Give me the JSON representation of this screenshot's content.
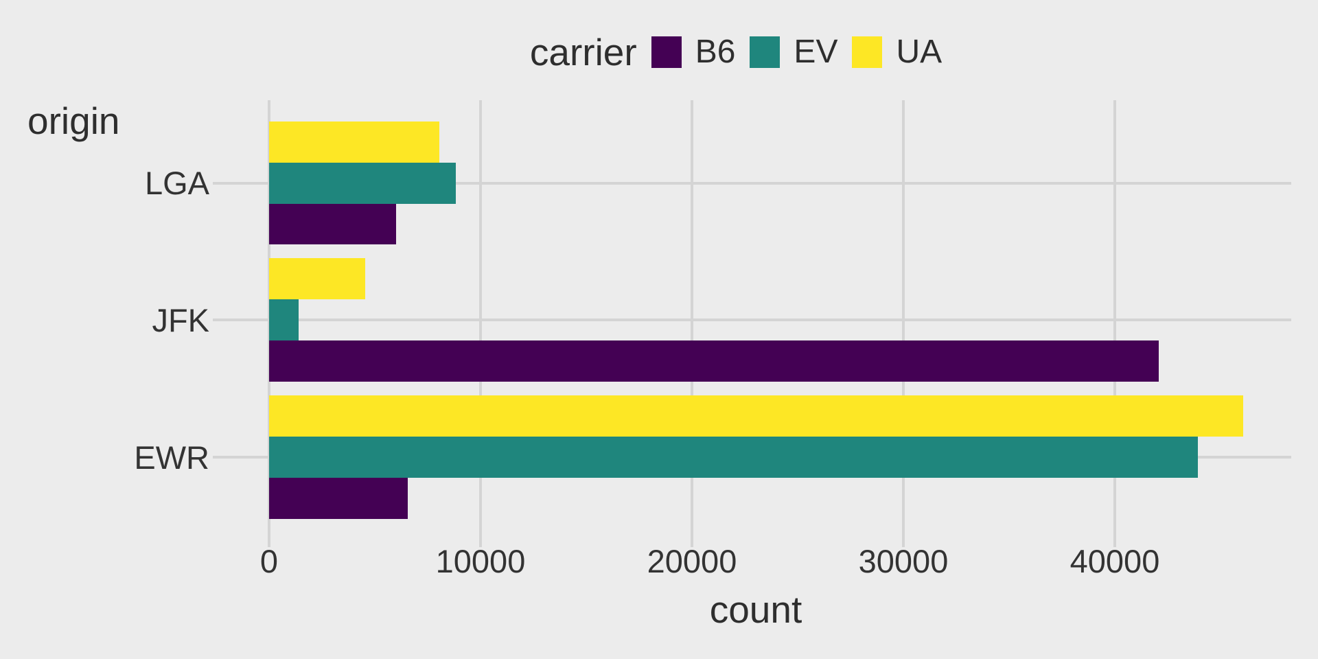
{
  "legend": {
    "title": "carrier"
  },
  "chart_data": {
    "type": "bar",
    "orientation": "horizontal",
    "title": "",
    "xlabel": "count",
    "ylabel": "origin",
    "legend_title": "carrier",
    "legend_position": "top",
    "grid": "major-only",
    "categories": [
      "LGA",
      "JFK",
      "EWR"
    ],
    "series": [
      {
        "name": "B6",
        "color": "#440154",
        "values": {
          "LGA": 6002,
          "JFK": 42076,
          "EWR": 6557
        }
      },
      {
        "name": "EV",
        "color": "#1f867d",
        "values": {
          "LGA": 8826,
          "JFK": 1408,
          "EWR": 43939
        }
      },
      {
        "name": "UA",
        "color": "#fde725",
        "values": {
          "LGA": 8044,
          "JFK": 4534,
          "EWR": 46087
        }
      }
    ],
    "x_ticks": [
      0,
      10000,
      20000,
      30000,
      40000
    ],
    "x_tick_labels": [
      "0",
      "10000",
      "20000",
      "30000",
      "40000"
    ],
    "xlim": [
      -2300,
      48400
    ]
  },
  "colors": {
    "background": "#ececec",
    "gridline": "#d4d4d4",
    "axis_text": "#333333",
    "title_text": "#2e2e2e"
  }
}
